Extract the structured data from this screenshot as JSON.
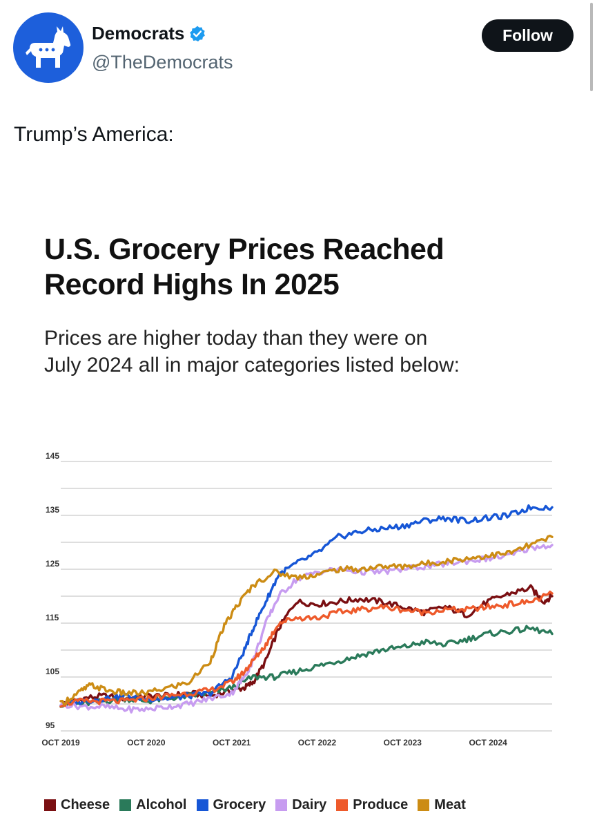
{
  "account": {
    "name": "Democrats",
    "handle": "@TheDemocrats",
    "follow_label": "Follow"
  },
  "tweet": {
    "text": "Trump’s America:"
  },
  "infographic": {
    "headline_line1": "U.S. Grocery Prices Reached",
    "headline_line2": "Record Highs In 2025",
    "subhead_line1": "Prices are higher today than they were on",
    "subhead_line2": "July 2024 all in major categories listed below:"
  },
  "colors": {
    "brand": "#1d5fdb",
    "verified": "#1d9bf0",
    "grid": "#bdbdbd"
  },
  "chart_data": {
    "type": "line",
    "title": "U.S. Grocery Prices Reached Record Highs In 2025",
    "xlabel": "",
    "ylabel": "",
    "ylim": [
      95,
      145
    ],
    "y_ticks": [
      95,
      105,
      115,
      125,
      135,
      145
    ],
    "y_tick_labels": [
      "95",
      "105",
      "115",
      "125",
      "135",
      "145"
    ],
    "gridlines_at": [
      95,
      100,
      105,
      110,
      115,
      120,
      125,
      130,
      135,
      140,
      145
    ],
    "xlim": [
      2019.75,
      2025.5
    ],
    "x_ticks": [
      2019.75,
      2020.75,
      2021.75,
      2022.75,
      2023.75,
      2024.75
    ],
    "x_tick_labels": [
      "OCT 2019",
      "OCT 2020",
      "OCT 2021",
      "OCT 2022",
      "OCT 2023",
      "OCT 2024"
    ],
    "legend_position": "bottom",
    "series": [
      {
        "name": "Cheese",
        "color": "#7a0f12",
        "x": [
          2019.75,
          2020.0,
          2020.25,
          2020.5,
          2020.75,
          2021.0,
          2021.25,
          2021.5,
          2021.75,
          2021.9,
          2022.0,
          2022.15,
          2022.3,
          2022.5,
          2022.75,
          2023.0,
          2023.25,
          2023.5,
          2023.75,
          2024.0,
          2024.25,
          2024.5,
          2024.75,
          2025.0,
          2025.25,
          2025.4,
          2025.5
        ],
        "values": [
          100,
          101,
          101.5,
          101,
          101.5,
          101.5,
          102,
          101.5,
          102.5,
          103,
          104,
          108,
          114,
          119,
          118.5,
          119,
          119.5,
          119,
          118,
          117,
          118,
          116.5,
          119,
          120.5,
          121.5,
          119,
          120
        ]
      },
      {
        "name": "Alcohol",
        "color": "#2a7a5a",
        "x": [
          2019.75,
          2020.0,
          2020.25,
          2020.5,
          2020.75,
          2021.0,
          2021.25,
          2021.5,
          2021.75,
          2022.0,
          2022.25,
          2022.5,
          2022.75,
          2023.0,
          2023.25,
          2023.5,
          2023.75,
          2024.0,
          2024.25,
          2024.5,
          2024.75,
          2025.0,
          2025.25,
          2025.5
        ],
        "values": [
          100,
          100,
          100.5,
          101,
          100.5,
          101,
          101.5,
          102,
          103,
          105,
          105,
          106,
          107,
          108,
          109,
          110,
          110.5,
          111.5,
          111,
          112,
          113,
          113.5,
          114,
          113
        ]
      },
      {
        "name": "Grocery",
        "color": "#1656d6",
        "x": [
          2019.75,
          2020.0,
          2020.25,
          2020.5,
          2020.75,
          2021.0,
          2021.25,
          2021.5,
          2021.75,
          2021.9,
          2022.0,
          2022.15,
          2022.3,
          2022.5,
          2022.75,
          2023.0,
          2023.25,
          2023.5,
          2023.75,
          2024.0,
          2024.25,
          2024.5,
          2024.75,
          2025.0,
          2025.25,
          2025.5
        ],
        "values": [
          100,
          100.5,
          101,
          101.5,
          101,
          101,
          101.5,
          102,
          105,
          110,
          114,
          119,
          124,
          126,
          128,
          131,
          132,
          132.5,
          133,
          134,
          134.5,
          134,
          134.5,
          135,
          136.5,
          136.5
        ]
      },
      {
        "name": "Dairy",
        "color": "#c79cf0",
        "x": [
          2019.75,
          2020.0,
          2020.25,
          2020.5,
          2020.75,
          2021.0,
          2021.25,
          2021.5,
          2021.75,
          2021.9,
          2022.0,
          2022.15,
          2022.3,
          2022.5,
          2022.75,
          2023.0,
          2023.25,
          2023.5,
          2023.75,
          2024.0,
          2024.25,
          2024.5,
          2024.75,
          2025.0,
          2025.25,
          2025.5
        ],
        "values": [
          100,
          99.5,
          99.5,
          99,
          99,
          99.5,
          100,
          101,
          102,
          105,
          108,
          115,
          120,
          123,
          124.5,
          125,
          124.5,
          124.5,
          125,
          125.5,
          126,
          126.5,
          127,
          127.5,
          129,
          129.5
        ]
      },
      {
        "name": "Produce",
        "color": "#ee5a2b",
        "x": [
          2019.75,
          2020.0,
          2020.25,
          2020.5,
          2020.75,
          2021.0,
          2021.25,
          2021.5,
          2021.75,
          2021.9,
          2022.0,
          2022.15,
          2022.3,
          2022.5,
          2022.75,
          2023.0,
          2023.25,
          2023.5,
          2023.75,
          2024.0,
          2024.25,
          2024.5,
          2024.75,
          2025.0,
          2025.25,
          2025.5
        ],
        "values": [
          100,
          100.5,
          100.5,
          100.5,
          101,
          101.5,
          102,
          102.5,
          104,
          106,
          108,
          111,
          115,
          116,
          116,
          117,
          117.5,
          118,
          117.5,
          117,
          117.5,
          117.5,
          118,
          118.5,
          119,
          120.5
        ]
      },
      {
        "name": "Meat",
        "color": "#cc8c14",
        "x": [
          2019.75,
          2019.95,
          2020.1,
          2020.3,
          2020.5,
          2020.75,
          2021.0,
          2021.25,
          2021.5,
          2021.65,
          2021.8,
          2022.0,
          2022.25,
          2022.5,
          2022.75,
          2023.0,
          2023.25,
          2023.5,
          2023.75,
          2024.0,
          2024.25,
          2024.5,
          2024.75,
          2025.0,
          2025.25,
          2025.5
        ],
        "values": [
          100,
          102,
          103.5,
          102.5,
          102,
          102,
          103,
          104,
          108,
          114,
          118,
          122,
          124.5,
          123.5,
          124,
          125,
          125,
          125.5,
          125.5,
          126,
          126.5,
          127,
          127.5,
          128,
          129.5,
          131
        ]
      }
    ]
  }
}
